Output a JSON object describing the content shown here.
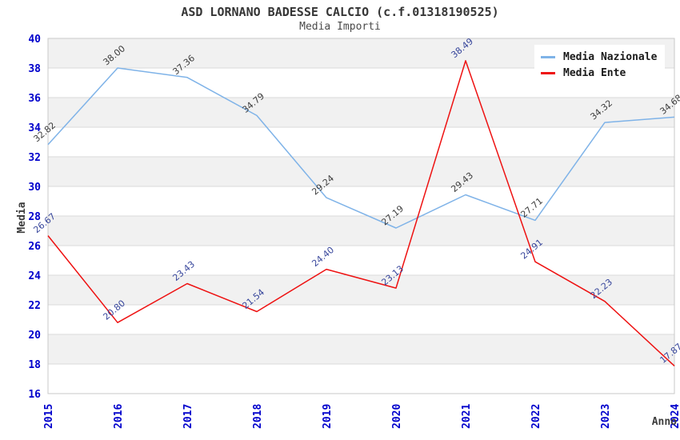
{
  "header": {
    "title": "ASD LORNANO BADESSE CALCIO (c.f.01318190525)",
    "subtitle": "Media Importi"
  },
  "axes": {
    "y_title": "Media",
    "x_title": "Anno",
    "tick_label_color": "#0000CC"
  },
  "legend": {
    "position": "top-right",
    "items": [
      {
        "label": "Media Nazionale",
        "color": "#7FB3E8"
      },
      {
        "label": "Media Ente",
        "color": "#EE1111"
      }
    ]
  },
  "chart_data": {
    "type": "line",
    "title": "ASD LORNANO BADESSE CALCIO (c.f.01318190525)",
    "subtitle": "Media Importi",
    "xlabel": "Anno",
    "ylabel": "Media",
    "x": [
      2015,
      2016,
      2017,
      2018,
      2019,
      2020,
      2021,
      2022,
      2023,
      2024
    ],
    "series": [
      {
        "name": "Media Nazionale",
        "color": "#7FB3E8",
        "label_color": "#3C3C3C",
        "values": [
          32.82,
          38.0,
          37.36,
          34.79,
          29.24,
          27.19,
          29.43,
          27.71,
          34.32,
          34.68
        ]
      },
      {
        "name": "Media Ente",
        "color": "#EE1111",
        "label_color": "#36459B",
        "values": [
          26.67,
          20.8,
          23.43,
          21.54,
          24.4,
          23.13,
          38.49,
          24.91,
          22.23,
          17.87
        ]
      }
    ],
    "ylim": [
      16,
      40
    ],
    "ytick_step": 2,
    "grid": true,
    "legend_position": "top-right",
    "style": {
      "band_fill": "#F1F1F1",
      "plot_background": "#FFFFFF",
      "grid_color": "#DADADA",
      "border_color": "#C9C9C9",
      "tick_label_color": "#0000CC"
    }
  }
}
